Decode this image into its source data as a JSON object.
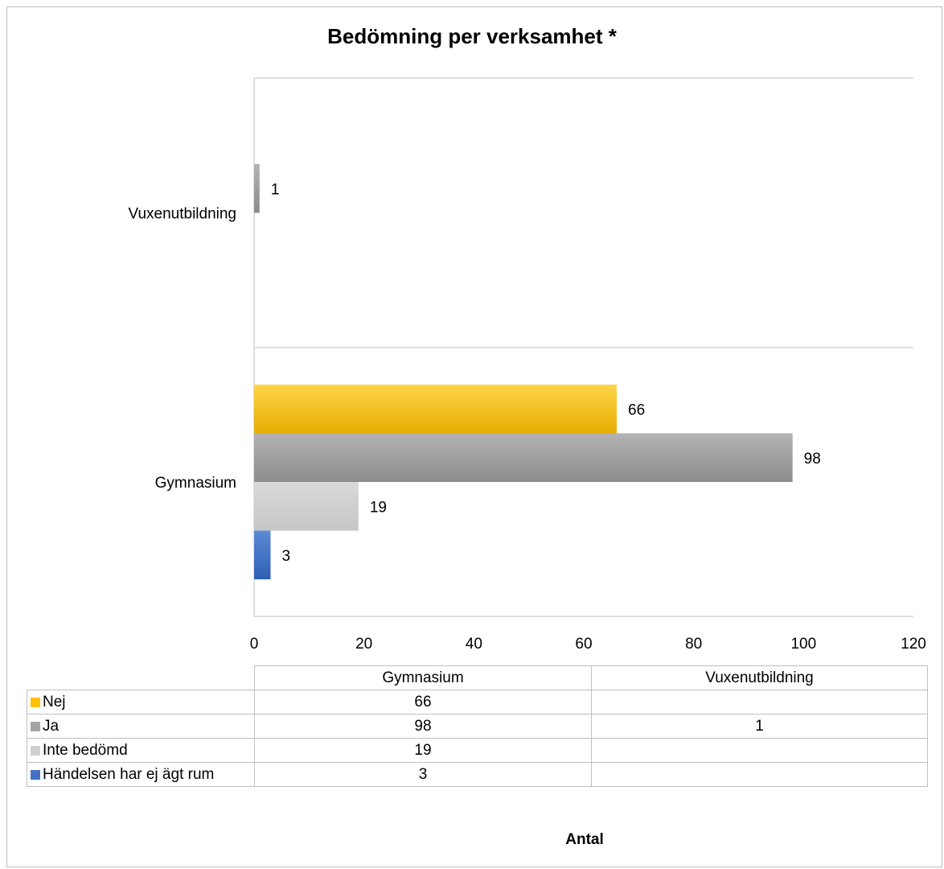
{
  "chart_data": {
    "type": "bar",
    "orientation": "horizontal",
    "title": "Bedömning per verksamhet *",
    "xlabel": "Antal",
    "ylabel": "",
    "xlim": [
      0,
      120
    ],
    "ticks": [
      "0",
      "20",
      "40",
      "60",
      "80",
      "100",
      "120"
    ],
    "tick_values": [
      0,
      20,
      40,
      60,
      80,
      100,
      120
    ],
    "categories": [
      "Gymnasium",
      "Vuxenutbildning"
    ],
    "series": [
      {
        "name": "Nej",
        "values": [
          66,
          null
        ],
        "color": "#ffc000"
      },
      {
        "name": "Ja",
        "values": [
          98,
          1
        ],
        "color": "#a5a5a5"
      },
      {
        "name": "Inte bedömd",
        "values": [
          19,
          null
        ],
        "color": "#d0d0d0"
      },
      {
        "name": "Händelsen har ej ägt rum",
        "values": [
          3,
          null
        ],
        "color": "#4472c4"
      }
    ],
    "data_table": {
      "rows": [
        {
          "label": "Nej",
          "values": [
            "66",
            ""
          ]
        },
        {
          "label": "Ja",
          "values": [
            "98",
            "1"
          ]
        },
        {
          "label": "Inte bedömd",
          "values": [
            "19",
            ""
          ]
        },
        {
          "label": "Händelsen har ej ägt rum",
          "values": [
            "3",
            ""
          ]
        }
      ]
    }
  }
}
